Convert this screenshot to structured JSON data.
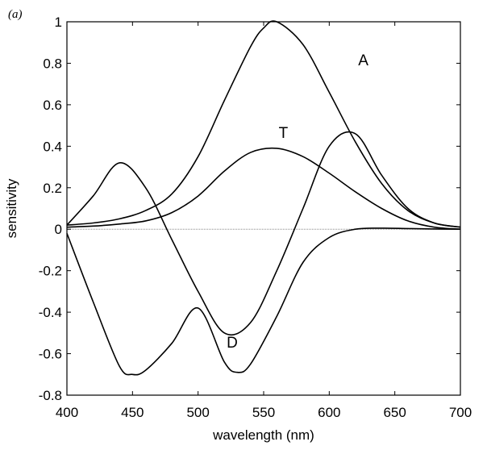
{
  "chart_data": {
    "type": "line",
    "panel_label": "(a)",
    "title": "",
    "xlabel": "wavelength (nm)",
    "ylabel": "sensitivity",
    "xlim": [
      400,
      700
    ],
    "ylim": [
      -0.8,
      1
    ],
    "xticks": [
      400,
      450,
      500,
      550,
      600,
      650,
      700
    ],
    "yticks": [
      -0.8,
      -0.6,
      -0.4,
      -0.2,
      0,
      0.2,
      0.4,
      0.6,
      0.8,
      1
    ],
    "ytick_labels": [
      "-0.8",
      "-0.6",
      "-0.4",
      "-0.2",
      "0",
      "0.2",
      "0.4",
      "0.6",
      "0.8",
      "1"
    ],
    "grid": false,
    "zero_line": true,
    "series": [
      {
        "name": "A",
        "x": [
          400,
          420,
          440,
          460,
          480,
          500,
          520,
          540,
          550,
          560,
          580,
          600,
          620,
          640,
          660,
          680,
          700
        ],
        "values": [
          0.02,
          0.03,
          0.05,
          0.09,
          0.17,
          0.35,
          0.62,
          0.88,
          0.97,
          1.0,
          0.89,
          0.66,
          0.42,
          0.22,
          0.09,
          0.03,
          0.01
        ]
      },
      {
        "name": "T",
        "x": [
          400,
          420,
          440,
          460,
          480,
          500,
          520,
          540,
          560,
          580,
          600,
          620,
          640,
          660,
          680,
          700
        ],
        "values": [
          0.01,
          0.015,
          0.025,
          0.04,
          0.08,
          0.16,
          0.28,
          0.37,
          0.39,
          0.35,
          0.27,
          0.18,
          0.1,
          0.04,
          0.01,
          0.0
        ]
      },
      {
        "name": "",
        "x": [
          400,
          420,
          440,
          460,
          480,
          500,
          520,
          540,
          560,
          580,
          600,
          620,
          640,
          660,
          680,
          700
        ],
        "values": [
          0.02,
          0.16,
          0.32,
          0.2,
          -0.05,
          -0.3,
          -0.5,
          -0.45,
          -0.2,
          0.1,
          0.4,
          0.46,
          0.26,
          0.1,
          0.03,
          0.01
        ]
      },
      {
        "name": "D",
        "x": [
          400,
          420,
          440,
          450,
          460,
          480,
          500,
          520,
          530,
          540,
          560,
          580,
          600,
          620,
          640,
          660,
          680,
          700
        ],
        "values": [
          -0.02,
          -0.35,
          -0.66,
          -0.7,
          -0.68,
          -0.55,
          -0.38,
          -0.64,
          -0.69,
          -0.65,
          -0.42,
          -0.16,
          -0.04,
          0.0,
          0.005,
          0.003,
          0.001,
          0.0
        ]
      }
    ],
    "annotations": [
      {
        "text": "A",
        "x": 626,
        "y": 0.79
      },
      {
        "text": "T",
        "x": 565,
        "y": 0.44
      },
      {
        "text": "D",
        "x": 526,
        "y": -0.57
      }
    ]
  }
}
